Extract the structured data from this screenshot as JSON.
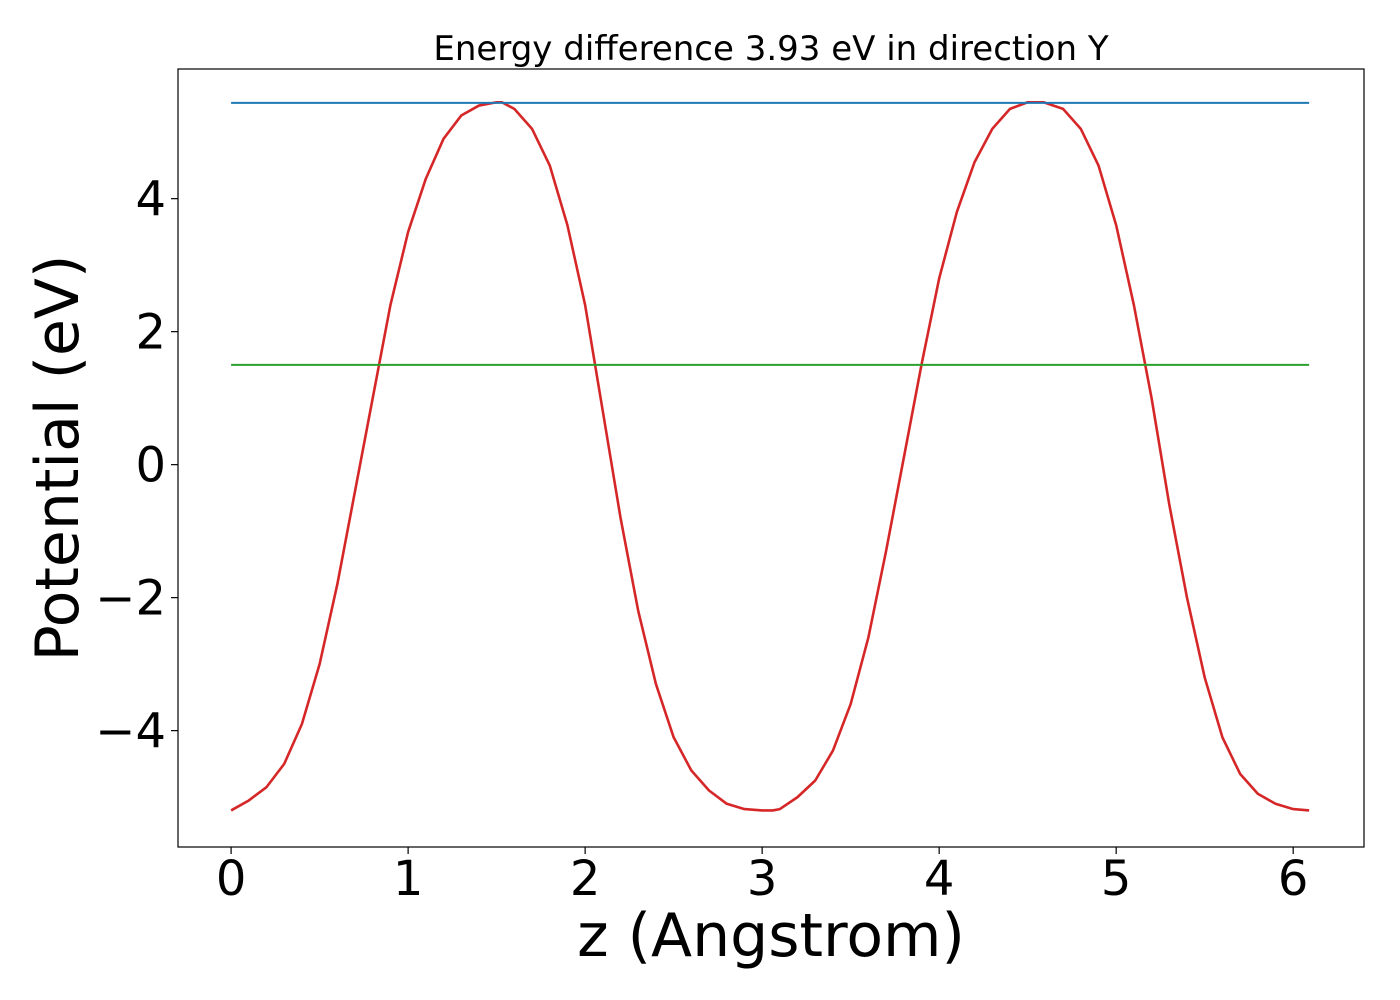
{
  "chart_data": {
    "type": "line",
    "title": "Energy difference 3.93 eV in direction Y",
    "xlabel": "z (Angstrom)",
    "ylabel": "Potential (eV)",
    "xlim": [
      -0.3,
      6.4
    ],
    "ylim": [
      -5.75,
      5.95
    ],
    "x_ticks": [
      0,
      1,
      2,
      3,
      4,
      5,
      6
    ],
    "x_tick_labels": [
      "0",
      "1",
      "2",
      "3",
      "4",
      "5",
      "6"
    ],
    "y_ticks": [
      -4,
      -2,
      0,
      2,
      4
    ],
    "y_tick_labels": [
      "−4",
      "−2",
      "0",
      "2",
      "4"
    ],
    "grid": false,
    "series": [
      {
        "color": "#d62728",
        "x": [
          0,
          0.1,
          0.2,
          0.3,
          0.4,
          0.5,
          0.6,
          0.7,
          0.8,
          0.9,
          1.0,
          1.1,
          1.2,
          1.3,
          1.4,
          1.5,
          1.53,
          1.6,
          1.7,
          1.8,
          1.9,
          2.0,
          2.1,
          2.2,
          2.3,
          2.4,
          2.5,
          2.6,
          2.7,
          2.8,
          2.9,
          3.0,
          3.06,
          3.1,
          3.2,
          3.3,
          3.4,
          3.5,
          3.6,
          3.7,
          3.8,
          3.9,
          4.0,
          4.1,
          4.2,
          4.3,
          4.4,
          4.5,
          4.59,
          4.7,
          4.8,
          4.9,
          5.0,
          5.1,
          5.2,
          5.3,
          5.4,
          5.5,
          5.6,
          5.7,
          5.8,
          5.9,
          6.0,
          6.09
        ],
        "y": [
          -5.2,
          -5.05,
          -4.85,
          -4.5,
          -3.9,
          -3.0,
          -1.8,
          -0.4,
          1.0,
          2.4,
          3.5,
          4.3,
          4.9,
          5.25,
          5.4,
          5.45,
          5.45,
          5.35,
          5.05,
          4.5,
          3.6,
          2.4,
          0.8,
          -0.8,
          -2.2,
          -3.3,
          -4.1,
          -4.6,
          -4.9,
          -5.1,
          -5.18,
          -5.2,
          -5.2,
          -5.18,
          -5.0,
          -4.75,
          -4.3,
          -3.6,
          -2.6,
          -1.3,
          0.1,
          1.5,
          2.8,
          3.8,
          4.55,
          5.05,
          5.35,
          5.45,
          5.45,
          5.35,
          5.05,
          4.5,
          3.6,
          2.4,
          1.0,
          -0.6,
          -2.0,
          -3.2,
          -4.1,
          -4.65,
          -4.95,
          -5.1,
          -5.18,
          -5.2
        ]
      },
      {
        "color": "#1f77b4",
        "x": [
          0,
          6.09
        ],
        "y": [
          5.44,
          5.44
        ]
      },
      {
        "color": "#2ca02c",
        "x": [
          0,
          6.09
        ],
        "y": [
          1.5,
          1.5
        ]
      }
    ]
  }
}
